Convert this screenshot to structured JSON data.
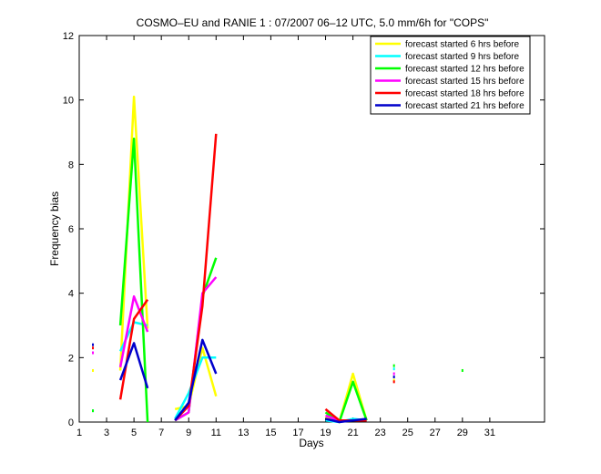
{
  "chart_data": {
    "type": "line",
    "title": "COSMO–EU and RANIE 1 : 07/2007 06–12 UTC, 5.0 mm/6h for \"COPS\"",
    "xlabel": "Days",
    "ylabel": "Frequency bias",
    "xlim": [
      1,
      35
    ],
    "ylim": [
      0,
      12
    ],
    "xticks": [
      1,
      3,
      5,
      7,
      9,
      11,
      13,
      15,
      17,
      19,
      21,
      23,
      25,
      27,
      29,
      31
    ],
    "yticks": [
      0,
      2,
      4,
      6,
      8,
      10,
      12
    ],
    "grid": false,
    "legend_position": "top-right",
    "series": [
      {
        "name": "forecast started 6 hrs before",
        "color": "#ffff00",
        "segments": [
          [
            [
              4,
              1.6
            ],
            [
              5,
              10.1
            ],
            [
              6,
              2.9
            ]
          ],
          [
            [
              8,
              0.4
            ],
            [
              9,
              0.5
            ],
            [
              10,
              2.3
            ],
            [
              11,
              0.8
            ]
          ],
          [
            [
              19,
              0.15
            ],
            [
              20,
              0.0
            ],
            [
              21,
              1.5
            ],
            [
              22,
              0.05
            ]
          ]
        ],
        "points": [
          [
            2,
            1.6
          ],
          [
            24,
            1.3
          ]
        ]
      },
      {
        "name": "forecast started 9 hrs before",
        "color": "#00ffff",
        "segments": [
          [
            [
              4,
              2.2
            ],
            [
              5,
              3.1
            ],
            [
              6,
              3.0
            ]
          ],
          [
            [
              8,
              0.1
            ],
            [
              9,
              0.9
            ],
            [
              10,
              2.0
            ],
            [
              11,
              2.0
            ]
          ],
          [
            [
              19,
              0.05
            ],
            [
              20,
              0.0
            ],
            [
              21,
              0.1
            ],
            [
              22,
              0.05
            ]
          ]
        ],
        "points": [
          [
            2,
            0.35
          ],
          [
            24,
            1.65
          ]
        ]
      },
      {
        "name": "forecast started 12 hrs before",
        "color": "#00ff00",
        "segments": [
          [
            [
              4,
              3.0
            ],
            [
              5,
              8.8
            ],
            [
              6,
              0.0
            ]
          ],
          [
            [
              8,
              0.05
            ],
            [
              9,
              0.3
            ],
            [
              10,
              3.9
            ],
            [
              11,
              5.1
            ]
          ],
          [
            [
              19,
              0.3
            ],
            [
              20,
              0.0
            ],
            [
              21,
              1.25
            ],
            [
              22,
              0.05
            ]
          ]
        ],
        "points": [
          [
            2,
            0.35
          ],
          [
            24,
            1.75
          ],
          [
            29,
            1.6
          ]
        ]
      },
      {
        "name": "forecast started 15 hrs before",
        "color": "#ff00ff",
        "segments": [
          [
            [
              4,
              1.7
            ],
            [
              5,
              3.9
            ],
            [
              6,
              2.8
            ]
          ],
          [
            [
              8,
              0.05
            ],
            [
              9,
              0.3
            ],
            [
              10,
              4.0
            ],
            [
              11,
              4.5
            ]
          ],
          [
            [
              19,
              0.2
            ],
            [
              20,
              0.05
            ],
            [
              21,
              0.05
            ],
            [
              22,
              0.05
            ]
          ]
        ],
        "points": [
          [
            2,
            2.15
          ],
          [
            24,
            1.5
          ]
        ]
      },
      {
        "name": "forecast started 18 hrs before",
        "color": "#ff0000",
        "segments": [
          [
            [
              4,
              0.7
            ],
            [
              5,
              3.2
            ],
            [
              6,
              3.8
            ]
          ],
          [
            [
              8,
              0.05
            ],
            [
              9,
              0.5
            ],
            [
              10,
              3.6
            ],
            [
              11,
              8.95
            ]
          ],
          [
            [
              19,
              0.4
            ],
            [
              20,
              0.05
            ],
            [
              21,
              0.05
            ],
            [
              22,
              0.05
            ]
          ]
        ],
        "points": [
          [
            2,
            2.3
          ],
          [
            24,
            1.25
          ]
        ]
      },
      {
        "name": "forecast started 21 hrs before",
        "color": "#0000cc",
        "segments": [
          [
            [
              4,
              1.3
            ],
            [
              5,
              2.45
            ],
            [
              6,
              1.05
            ]
          ],
          [
            [
              8,
              0.05
            ],
            [
              9,
              0.6
            ],
            [
              10,
              2.55
            ],
            [
              11,
              1.5
            ]
          ],
          [
            [
              19,
              0.1
            ],
            [
              20,
              0.0
            ],
            [
              21,
              0.05
            ],
            [
              22,
              0.1
            ]
          ]
        ],
        "points": [
          [
            2,
            2.4
          ],
          [
            24,
            1.4
          ]
        ]
      }
    ]
  }
}
